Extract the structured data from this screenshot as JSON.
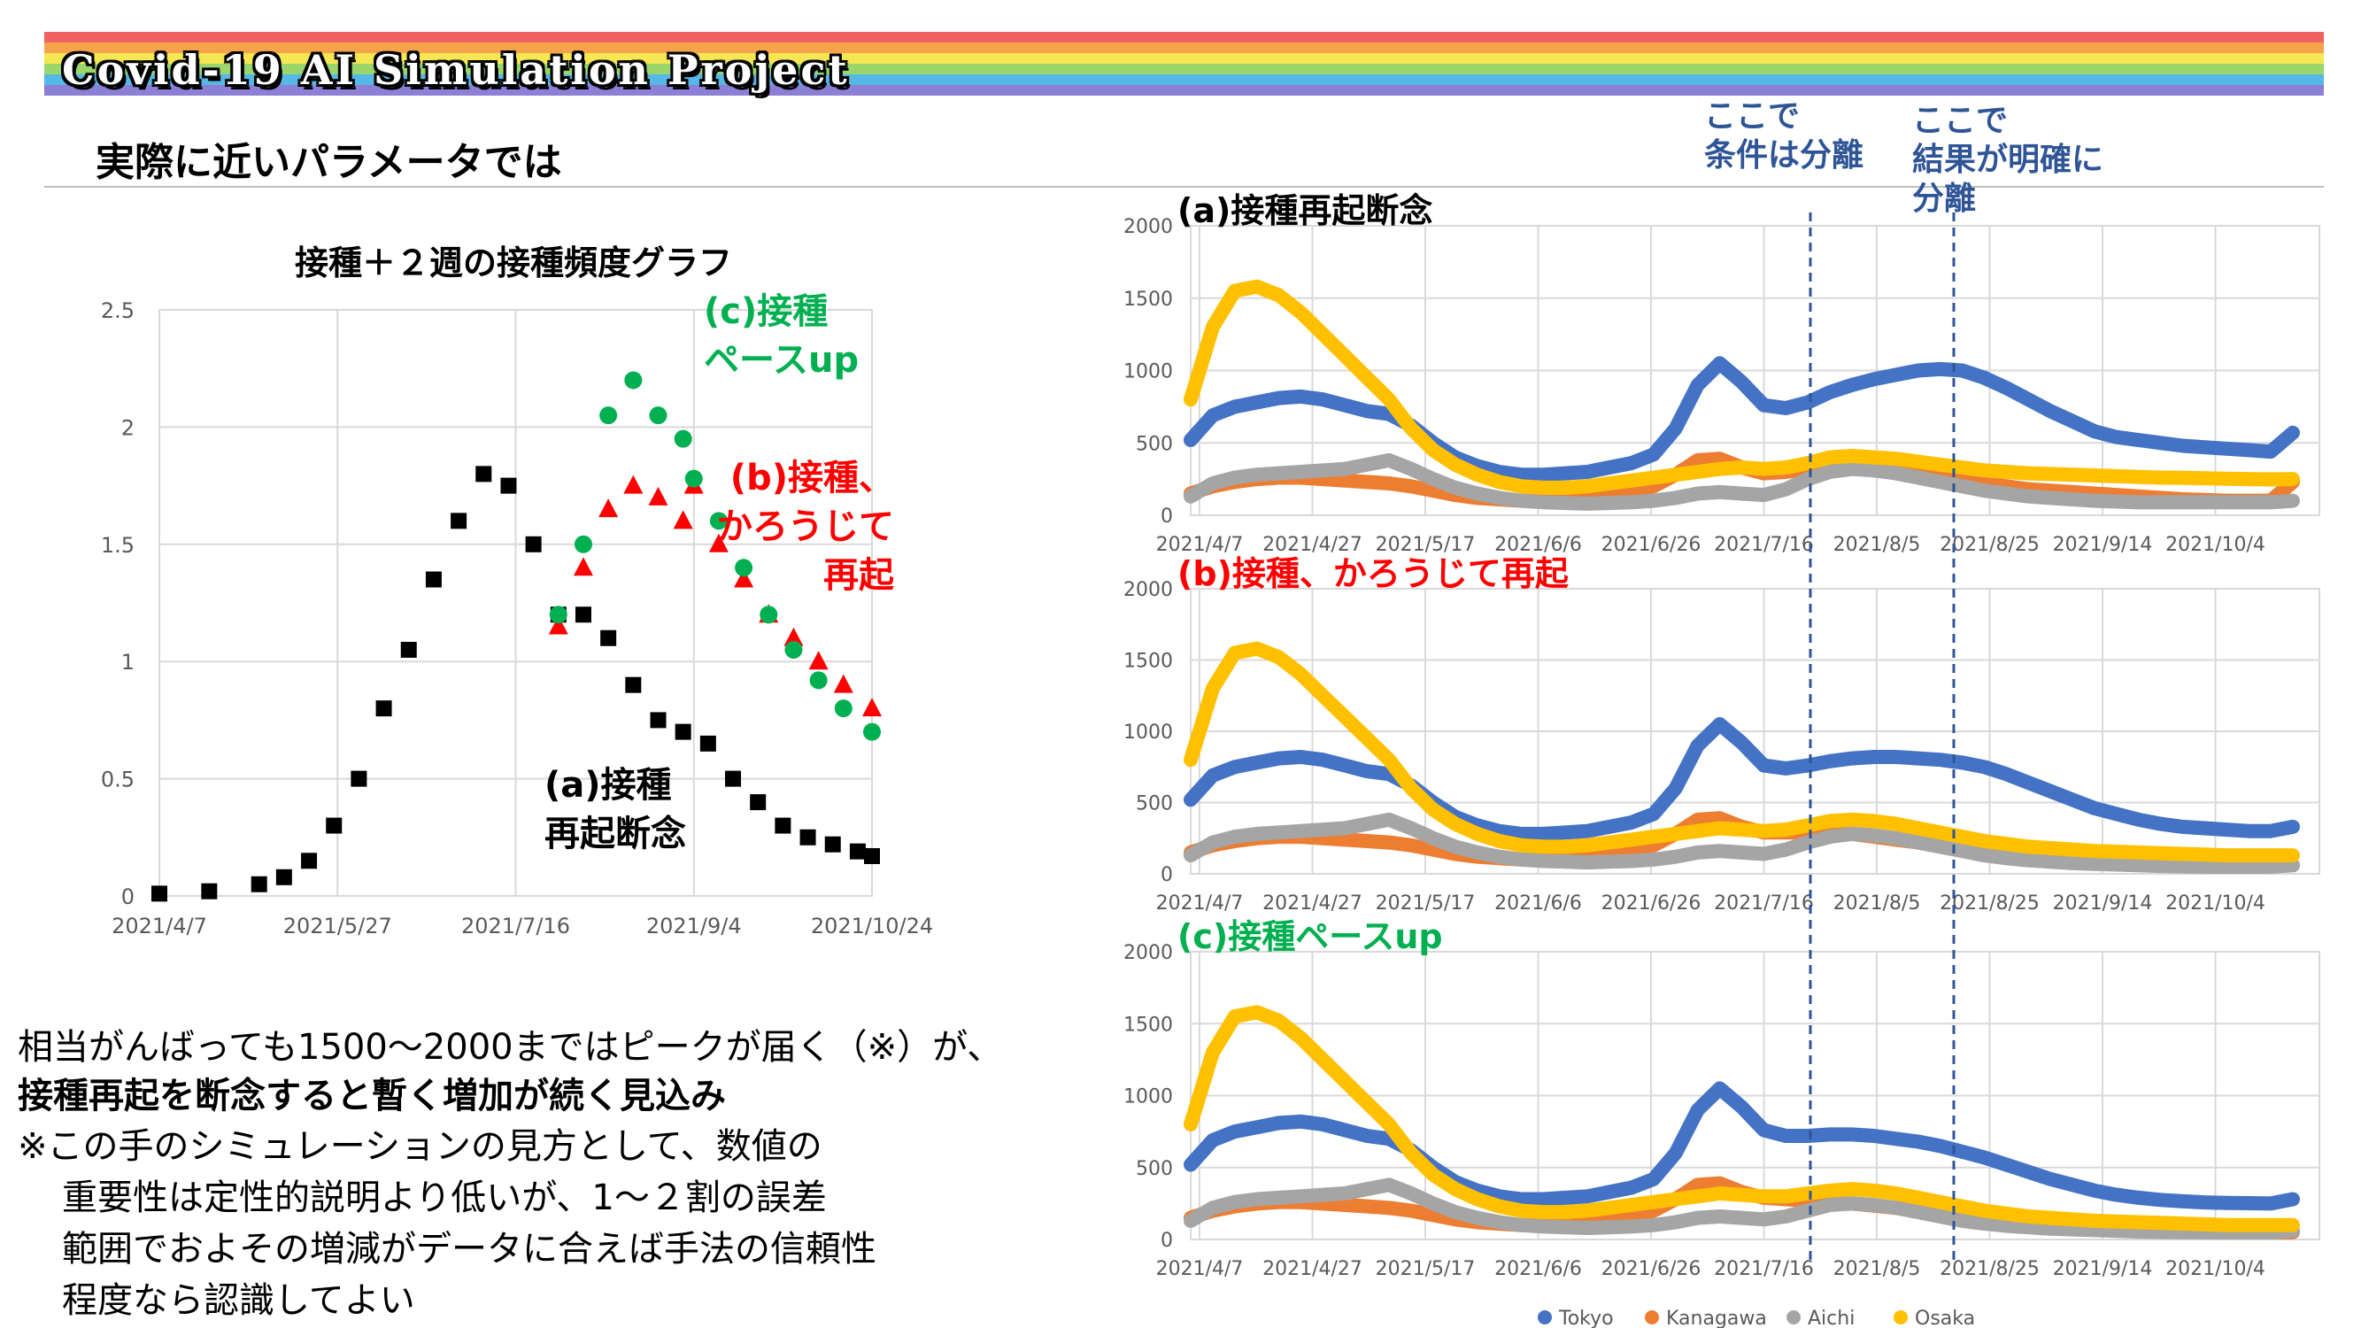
{
  "header": {
    "banner_title": "Covid-19 AI Simulation Project",
    "subtitle": "実際に近いパラメータでは",
    "rainbow_colors": [
      "#f06262",
      "#f7a34b",
      "#f5e653",
      "#9bd66c",
      "#56b8e6",
      "#8c7fd6"
    ]
  },
  "notes": {
    "note1": [
      "ここで",
      "条件は分離"
    ],
    "note2": [
      "ここで",
      "結果が明確に",
      "分離"
    ]
  },
  "body_text": {
    "line1": "相当がんばっても1500〜2000まではピークが届く（※）が、",
    "line2": "接種再起を断念すると暫く増加が続く見込み",
    "line3": "※この手のシミュレーションの見方として、数値の",
    "line4": "重要性は定性的説明より低いが、1〜２割の誤差",
    "line5": "範囲でおよその増減がデータに合えば手法の信頼性",
    "line6": "程度なら認識してよい"
  },
  "chart_data": [
    {
      "type": "scatter",
      "title": "接種＋２週の接種頻度グラフ",
      "xlabel": "",
      "ylabel": "",
      "x_ticks": [
        "2021/4/7",
        "2021/5/27",
        "2021/7/16",
        "2021/9/4",
        "2021/10/24"
      ],
      "y_ticks": [
        "0",
        "0.5",
        "1",
        "1.5",
        "2",
        "2.5"
      ],
      "ylim": [
        0,
        2.5
      ],
      "grid": true,
      "series": [
        {
          "name": "(a)接種\n再起断念",
          "color": "#000000",
          "marker": "square",
          "x": [
            "2021/4/7",
            "2021/4/21",
            "2021/5/5",
            "2021/5/12",
            "2021/5/19",
            "2021/5/26",
            "2021/6/2",
            "2021/6/9",
            "2021/6/16",
            "2021/6/23",
            "2021/6/30",
            "2021/7/7",
            "2021/7/14",
            "2021/7/21",
            "2021/7/28",
            "2021/8/4",
            "2021/8/11",
            "2021/8/18",
            "2021/8/25",
            "2021/9/1",
            "2021/9/8",
            "2021/9/15",
            "2021/9/22",
            "2021/9/29",
            "2021/10/6",
            "2021/10/13",
            "2021/10/20",
            "2021/10/24"
          ],
          "y": [
            0.01,
            0.02,
            0.05,
            0.08,
            0.15,
            0.3,
            0.5,
            0.8,
            1.05,
            1.35,
            1.6,
            1.8,
            1.75,
            1.5,
            1.2,
            1.2,
            1.1,
            0.9,
            0.75,
            0.7,
            0.65,
            0.5,
            0.4,
            0.3,
            0.25,
            0.22,
            0.19,
            0.17
          ]
        },
        {
          "name": "(b)接種、\nかろうじて\n再起",
          "color": "#ff0000",
          "marker": "triangle",
          "x": [
            "2021/7/28",
            "2021/8/4",
            "2021/8/11",
            "2021/8/18",
            "2021/8/25",
            "2021/9/1",
            "2021/9/4",
            "2021/9/11",
            "2021/9/18",
            "2021/9/25",
            "2021/10/2",
            "2021/10/9",
            "2021/10/16",
            "2021/10/24"
          ],
          "y": [
            1.15,
            1.4,
            1.65,
            1.75,
            1.7,
            1.6,
            1.75,
            1.5,
            1.35,
            1.2,
            1.1,
            1.0,
            0.9,
            0.8
          ]
        },
        {
          "name": "(c)接種\nペースup",
          "color": "#00b050",
          "marker": "circle",
          "x": [
            "2021/7/28",
            "2021/8/4",
            "2021/8/11",
            "2021/8/18",
            "2021/8/25",
            "2021/9/1",
            "2021/9/4",
            "2021/9/11",
            "2021/9/18",
            "2021/9/25",
            "2021/10/2",
            "2021/10/9",
            "2021/10/16",
            "2021/10/24"
          ],
          "y": [
            1.2,
            1.5,
            2.05,
            2.2,
            2.05,
            1.95,
            1.78,
            1.6,
            1.4,
            1.2,
            1.05,
            0.92,
            0.8,
            0.7
          ]
        }
      ]
    },
    {
      "type": "line",
      "title": "(a)接種再起断念",
      "x_ticks": [
        "2021/4/7",
        "2021/4/27",
        "2021/5/17",
        "2021/6/6",
        "2021/6/26",
        "2021/7/16",
        "2021/8/5",
        "2021/8/25",
        "2021/9/14",
        "2021/10/4"
      ],
      "y_ticks": [
        "0",
        "500",
        "1000",
        "1500",
        "2000"
      ],
      "ylim": [
        0,
        2000
      ],
      "x": [
        0,
        4,
        8,
        12,
        16,
        20,
        24,
        28,
        32,
        36,
        40,
        44,
        48,
        52,
        56,
        60,
        64,
        68,
        72,
        76,
        80,
        84,
        88,
        92,
        96,
        100,
        104,
        108,
        112,
        116,
        120,
        124,
        128,
        132,
        136,
        140,
        144,
        148,
        152,
        156,
        160,
        164,
        168,
        172,
        176,
        180,
        184,
        188,
        192,
        196,
        200
      ],
      "series": [
        {
          "name": "Tokyo",
          "color": "#4472c4",
          "values": [
            520,
            690,
            750,
            780,
            810,
            820,
            800,
            760,
            720,
            700,
            620,
            500,
            400,
            340,
            300,
            280,
            280,
            290,
            300,
            330,
            360,
            420,
            600,
            900,
            1050,
            920,
            760,
            740,
            780,
            850,
            900,
            940,
            970,
            1000,
            1010,
            1000,
            950,
            880,
            800,
            720,
            650,
            580,
            540,
            520,
            500,
            480,
            470,
            460,
            450,
            440,
            570
          ]
        },
        {
          "name": "Kanagawa",
          "color": "#ed7d31",
          "values": [
            150,
            200,
            230,
            250,
            260,
            260,
            250,
            240,
            230,
            220,
            200,
            170,
            140,
            120,
            110,
            100,
            100,
            105,
            110,
            130,
            160,
            200,
            280,
            380,
            390,
            330,
            290,
            300,
            320,
            340,
            330,
            320,
            300,
            280,
            260,
            240,
            220,
            200,
            180,
            170,
            160,
            150,
            140,
            130,
            120,
            110,
            105,
            100,
            100,
            100,
            230
          ]
        },
        {
          "name": "Aichi",
          "color": "#a5a5a5",
          "values": [
            130,
            220,
            260,
            280,
            290,
            300,
            310,
            320,
            350,
            380,
            320,
            250,
            190,
            150,
            120,
            100,
            90,
            85,
            80,
            85,
            90,
            100,
            120,
            150,
            160,
            150,
            140,
            180,
            250,
            300,
            320,
            310,
            290,
            260,
            230,
            200,
            170,
            150,
            130,
            120,
            110,
            100,
            95,
            90,
            90,
            90,
            90,
            90,
            90,
            90,
            100
          ]
        },
        {
          "name": "Osaka",
          "color": "#ffc000",
          "values": [
            800,
            1300,
            1550,
            1580,
            1520,
            1400,
            1250,
            1100,
            950,
            800,
            600,
            450,
            350,
            280,
            230,
            200,
            190,
            190,
            200,
            220,
            240,
            260,
            280,
            300,
            320,
            330,
            320,
            330,
            360,
            400,
            410,
            400,
            390,
            370,
            350,
            330,
            310,
            300,
            290,
            285,
            280,
            275,
            270,
            265,
            260,
            258,
            255,
            252,
            250,
            248,
            250
          ]
        }
      ]
    },
    {
      "type": "line",
      "title": "(b)接種、かろうじて再起",
      "x_ticks": [
        "2021/4/7",
        "2021/4/27",
        "2021/5/17",
        "2021/6/6",
        "2021/6/26",
        "2021/7/16",
        "2021/8/5",
        "2021/8/25",
        "2021/9/14",
        "2021/10/4"
      ],
      "y_ticks": [
        "0",
        "500",
        "1000",
        "1500",
        "2000"
      ],
      "ylim": [
        0,
        2000
      ],
      "x": [
        0,
        4,
        8,
        12,
        16,
        20,
        24,
        28,
        32,
        36,
        40,
        44,
        48,
        52,
        56,
        60,
        64,
        68,
        72,
        76,
        80,
        84,
        88,
        92,
        96,
        100,
        104,
        108,
        112,
        116,
        120,
        124,
        128,
        132,
        136,
        140,
        144,
        148,
        152,
        156,
        160,
        164,
        168,
        172,
        176,
        180,
        184,
        188,
        192,
        196,
        200
      ],
      "series": [
        {
          "name": "Tokyo",
          "color": "#4472c4",
          "values": [
            520,
            690,
            750,
            780,
            810,
            820,
            800,
            760,
            720,
            700,
            620,
            500,
            400,
            340,
            300,
            280,
            280,
            290,
            300,
            330,
            360,
            420,
            600,
            900,
            1050,
            920,
            760,
            740,
            760,
            790,
            810,
            820,
            820,
            810,
            800,
            780,
            750,
            700,
            640,
            580,
            520,
            460,
            420,
            380,
            350,
            330,
            320,
            310,
            300,
            300,
            330
          ]
        },
        {
          "name": "Kanagawa",
          "color": "#ed7d31",
          "values": [
            150,
            200,
            230,
            250,
            260,
            260,
            250,
            240,
            230,
            220,
            200,
            170,
            140,
            120,
            110,
            100,
            100,
            105,
            110,
            130,
            160,
            200,
            280,
            380,
            390,
            330,
            290,
            290,
            290,
            290,
            280,
            260,
            240,
            220,
            200,
            180,
            160,
            140,
            120,
            110,
            100,
            90,
            85,
            80,
            75,
            70,
            65,
            60,
            60,
            60,
            60
          ]
        },
        {
          "name": "Aichi",
          "color": "#a5a5a5",
          "values": [
            130,
            220,
            260,
            280,
            290,
            300,
            310,
            320,
            350,
            380,
            320,
            250,
            190,
            150,
            120,
            100,
            90,
            85,
            80,
            85,
            90,
            100,
            120,
            150,
            160,
            150,
            140,
            170,
            220,
            260,
            280,
            270,
            250,
            220,
            190,
            160,
            130,
            110,
            95,
            85,
            75,
            70,
            65,
            60,
            55,
            52,
            50,
            50,
            50,
            50,
            60
          ]
        },
        {
          "name": "Osaka",
          "color": "#ffc000",
          "values": [
            800,
            1300,
            1550,
            1580,
            1520,
            1400,
            1250,
            1100,
            950,
            800,
            600,
            450,
            350,
            280,
            230,
            200,
            190,
            190,
            200,
            220,
            240,
            260,
            280,
            300,
            320,
            310,
            300,
            310,
            340,
            370,
            380,
            370,
            350,
            320,
            290,
            260,
            230,
            210,
            190,
            180,
            170,
            160,
            155,
            150,
            145,
            140,
            135,
            130,
            130,
            130,
            130
          ]
        }
      ]
    },
    {
      "type": "line",
      "title": "(c)接種ペースup",
      "x_ticks": [
        "2021/4/7",
        "2021/4/27",
        "2021/5/17",
        "2021/6/6",
        "2021/6/26",
        "2021/7/16",
        "2021/8/5",
        "2021/8/25",
        "2021/9/14",
        "2021/10/4"
      ],
      "y_ticks": [
        "0",
        "500",
        "1000",
        "1500",
        "2000"
      ],
      "ylim": [
        0,
        2000
      ],
      "x": [
        0,
        4,
        8,
        12,
        16,
        20,
        24,
        28,
        32,
        36,
        40,
        44,
        48,
        52,
        56,
        60,
        64,
        68,
        72,
        76,
        80,
        84,
        88,
        92,
        96,
        100,
        104,
        108,
        112,
        116,
        120,
        124,
        128,
        132,
        136,
        140,
        144,
        148,
        152,
        156,
        160,
        164,
        168,
        172,
        176,
        180,
        184,
        188,
        192,
        196,
        200
      ],
      "series": [
        {
          "name": "Tokyo",
          "color": "#4472c4",
          "values": [
            520,
            690,
            750,
            780,
            810,
            820,
            800,
            760,
            720,
            700,
            620,
            500,
            400,
            340,
            300,
            280,
            280,
            290,
            300,
            330,
            360,
            420,
            600,
            900,
            1050,
            920,
            760,
            720,
            720,
            730,
            730,
            720,
            700,
            680,
            650,
            610,
            570,
            520,
            470,
            420,
            380,
            340,
            310,
            290,
            275,
            265,
            258,
            254,
            252,
            250,
            280
          ]
        },
        {
          "name": "Kanagawa",
          "color": "#ed7d31",
          "values": [
            150,
            200,
            230,
            250,
            260,
            260,
            250,
            240,
            230,
            220,
            200,
            170,
            140,
            120,
            110,
            100,
            100,
            105,
            110,
            130,
            160,
            200,
            280,
            380,
            390,
            330,
            290,
            280,
            270,
            260,
            250,
            235,
            220,
            200,
            180,
            160,
            140,
            120,
            100,
            90,
            80,
            75,
            70,
            65,
            60,
            55,
            52,
            50,
            50,
            50,
            50
          ]
        },
        {
          "name": "Aichi",
          "color": "#a5a5a5",
          "values": [
            130,
            220,
            260,
            280,
            290,
            300,
            310,
            320,
            350,
            380,
            320,
            250,
            190,
            150,
            120,
            100,
            90,
            85,
            80,
            85,
            90,
            100,
            120,
            150,
            160,
            150,
            140,
            160,
            200,
            240,
            250,
            240,
            220,
            190,
            160,
            130,
            110,
            95,
            85,
            75,
            70,
            65,
            60,
            55,
            52,
            50,
            50,
            50,
            50,
            50,
            60
          ]
        },
        {
          "name": "Osaka",
          "color": "#ffc000",
          "values": [
            800,
            1300,
            1550,
            1580,
            1520,
            1400,
            1250,
            1100,
            950,
            800,
            600,
            450,
            350,
            280,
            230,
            200,
            190,
            190,
            200,
            220,
            240,
            260,
            280,
            300,
            320,
            310,
            300,
            300,
            320,
            340,
            350,
            340,
            320,
            290,
            260,
            230,
            200,
            180,
            160,
            150,
            140,
            130,
            125,
            120,
            115,
            110,
            105,
            100,
            100,
            100,
            100
          ]
        }
      ]
    }
  ],
  "legend": [
    {
      "name": "Tokyo",
      "color": "#4472c4"
    },
    {
      "name": "Kanagawa",
      "color": "#ed7d31"
    },
    {
      "name": "Aichi",
      "color": "#a5a5a5"
    },
    {
      "name": "Osaka",
      "color": "#ffc000"
    }
  ]
}
